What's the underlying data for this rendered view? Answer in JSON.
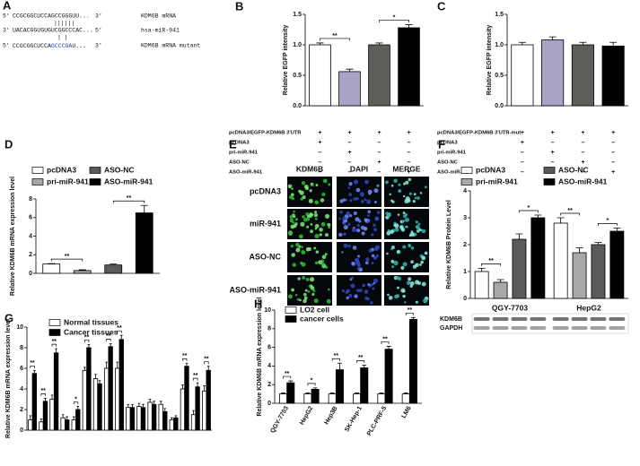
{
  "panel_a": {
    "label": "A",
    "lines": [
      {
        "start": "5'",
        "seq": "CCGCGGCUCCAGCCGGGUU...",
        "end": "3'",
        "name": "KDM6B mRNA"
      },
      {
        "start": "3'",
        "seq": "UACACGGUGUGUCGGCCCAC...",
        "end": "5'",
        "name": "hsa-miR-941"
      },
      {
        "start": "5'",
        "seq": "CCGCGGCUCCA",
        "seq_mutated": "GCCCGA",
        "seq_rest": "U...",
        "end": "3'",
        "name": "KDM6B mRNA mutant"
      }
    ],
    "pairings": [
      "||||||",
      "|  |"
    ]
  },
  "panel_e": {
    "label": "E",
    "columns": [
      "KDM6B",
      "DAPI",
      "MERGE"
    ],
    "rows": [
      "pcDNA3",
      "miR-941",
      "ASO-NC",
      "ASO-miR-941"
    ]
  },
  "chart_data": [
    {
      "type": "bar",
      "panel_label": "B",
      "y_label": "Relative EGFP intensity",
      "ylim": [
        0,
        1.5
      ],
      "yticks": [
        {
          "value": 0,
          "label": "0.0"
        },
        0.5,
        {
          "value": 1,
          "label": "1.0"
        },
        1.5
      ],
      "series": [
        {
          "color": "#ffffff",
          "values": [
            1.0
          ],
          "errors": [
            0.03
          ]
        },
        {
          "color": "#a9a3c6",
          "values": [
            0.56
          ],
          "errors": [
            0.04
          ]
        },
        {
          "color": "#5e5e58",
          "values": [
            1.0
          ],
          "errors": [
            0.03
          ]
        },
        {
          "color": "#000000",
          "values": [
            1.28
          ],
          "errors": [
            0.05
          ]
        }
      ],
      "significance": [
        "**",
        "*"
      ],
      "conditions": [
        {
          "label": "pcDNA3/EGFP-KDM6B 3'UTR",
          "cells": [
            "+",
            "+",
            "+",
            "+"
          ]
        },
        {
          "label": "pcDNA3",
          "cells": [
            "+",
            "–",
            "–",
            "–"
          ]
        },
        {
          "label": "pri-miR-941",
          "cells": [
            "–",
            "+",
            "–",
            "–"
          ]
        },
        {
          "label": "ASO-NC",
          "cells": [
            "–",
            "–",
            "+",
            "–"
          ]
        },
        {
          "label": "ASO-miR-941",
          "cells": [
            "–",
            "–",
            "–",
            "+"
          ]
        }
      ]
    },
    {
      "type": "bar",
      "panel_label": "C",
      "y_label": "Relative EGFP intensity",
      "ylim": [
        0,
        1.5
      ],
      "yticks": [
        {
          "value": 0,
          "label": "0.0"
        },
        0.5,
        {
          "value": 1,
          "label": "1.0"
        },
        1.5
      ],
      "series": [
        {
          "color": "#ffffff",
          "values": [
            1.0
          ],
          "errors": [
            0.04
          ]
        },
        {
          "color": "#a9a3c6",
          "values": [
            1.08
          ],
          "errors": [
            0.05
          ]
        },
        {
          "color": "#5e5e58",
          "values": [
            1.0
          ],
          "errors": [
            0.04
          ]
        },
        {
          "color": "#000000",
          "values": [
            0.98
          ],
          "errors": [
            0.06
          ]
        }
      ],
      "conditions": [
        {
          "label": "pcDNA3/EGFP-KDM6B 3'UTR-mut",
          "cells": [
            "+",
            "+",
            "+",
            "+"
          ]
        },
        {
          "label": "pcDNA3",
          "cells": [
            "+",
            "–",
            "–",
            "–"
          ]
        },
        {
          "label": "pri-miR-941",
          "cells": [
            "–",
            "+",
            "–",
            "–"
          ]
        },
        {
          "label": "ASO-NC",
          "cells": [
            "–",
            "–",
            "+",
            "–"
          ]
        },
        {
          "label": "ASO-miR-941",
          "cells": [
            "–",
            "–",
            "–",
            "+"
          ]
        }
      ]
    },
    {
      "type": "bar",
      "panel_label": "D",
      "y_label": "Relative KDM6B mRNA expression level",
      "ylim": [
        0,
        8
      ],
      "yticks": [
        0,
        2,
        4,
        6,
        8
      ],
      "series": [
        {
          "name": "pcDNA3",
          "color": "#ffffff",
          "values": [
            1.0
          ],
          "errors": [
            0.05
          ]
        },
        {
          "name": "pri-miR-941",
          "color": "#a8a8a8",
          "values": [
            0.3
          ],
          "errors": [
            0.08
          ]
        },
        {
          "name": "ASO-NC",
          "color": "#5a5a5a",
          "values": [
            0.9
          ],
          "errors": [
            0.1
          ]
        },
        {
          "name": "ASO-miR-941",
          "color": "#000000",
          "values": [
            6.5
          ],
          "errors": [
            0.8
          ]
        }
      ],
      "significance": [
        "**",
        "**"
      ]
    },
    {
      "type": "bar",
      "panel_label": "F",
      "y_label": "Relative KDM6B Protein Level",
      "ylim": [
        0,
        4
      ],
      "yticks": [
        0,
        1,
        2,
        3,
        4
      ],
      "categories": [
        "QGY-7703",
        "HepG2"
      ],
      "series": [
        {
          "name": "pcDNA3",
          "color": "#ffffff",
          "values": [
            1.0,
            2.8
          ],
          "errors": [
            0.12,
            0.2
          ]
        },
        {
          "name": "pri-miR-941",
          "color": "#a8a8a8",
          "values": [
            0.6,
            1.7
          ],
          "errors": [
            0.1,
            0.18
          ]
        },
        {
          "name": "ASO-NC",
          "color": "#5a5a5a",
          "values": [
            2.2,
            2.0
          ],
          "errors": [
            0.2,
            0.08
          ]
        },
        {
          "name": "ASO-miR-941",
          "color": "#000000",
          "values": [
            3.0,
            2.5
          ],
          "errors": [
            0.1,
            0.12
          ]
        }
      ],
      "significance": [
        "**",
        "*",
        "**",
        "*"
      ],
      "blot_labels": [
        "KDM6B",
        "GAPDH"
      ]
    },
    {
      "type": "bar",
      "panel_label": "G",
      "y_label": "Relative KDM6B mRNA expression level",
      "ylim": [
        0,
        10
      ],
      "yticks": [
        0,
        2,
        4,
        6,
        8,
        10
      ],
      "series": [
        {
          "name": "Normal tissues",
          "color": "#ffffff",
          "values": [
            1.0,
            0.8,
            3.0,
            1.2,
            1.0,
            5.8,
            5.0,
            6.0,
            6.0,
            2.2,
            2.3,
            2.7,
            2.5,
            1.0,
            4.0,
            1.5,
            3.8
          ],
          "errors": [
            0.4,
            0.3,
            0.4,
            0.3,
            0.3,
            0.3,
            0.4,
            0.6,
            0.6,
            0.3,
            0.3,
            0.3,
            0.3,
            0.2,
            0.4,
            0.4,
            0.5
          ]
        },
        {
          "name": "Cancer tissues",
          "color": "#000000",
          "values": [
            5.5,
            2.8,
            7.5,
            1.0,
            2.0,
            8.0,
            4.5,
            8.1,
            8.8,
            2.2,
            2.2,
            2.5,
            1.8,
            1.2,
            6.2,
            4.2,
            5.8
          ],
          "errors": [
            0.3,
            0.3,
            0.4,
            0.3,
            0.3,
            0.3,
            0.3,
            0.3,
            0.4,
            0.3,
            0.3,
            0.3,
            0.3,
            0.2,
            0.3,
            0.4,
            0.4
          ]
        }
      ],
      "significance": [
        "**",
        "**",
        "**",
        null,
        "*",
        "**",
        null,
        "**",
        "**",
        null,
        null,
        null,
        null,
        null,
        "**",
        "**",
        "**"
      ]
    },
    {
      "type": "bar",
      "panel_label": "H",
      "y_label": "Relative KDM6B mRNA expression level",
      "ylim": [
        0,
        10
      ],
      "yticks": [
        0,
        2,
        4,
        6,
        8,
        10
      ],
      "categories": [
        "QGY-7703",
        "HepG2",
        "Hep3B",
        "SK-Hep-1",
        "PLC-PRF-5",
        "LM6"
      ],
      "series": [
        {
          "name": "LO2 cell",
          "color": "#ffffff",
          "values": [
            1.0,
            1.0,
            1.0,
            1.0,
            1.0,
            1.0
          ],
          "errors": [
            0.1,
            0.1,
            0.1,
            0.1,
            0.1,
            0.1
          ]
        },
        {
          "name": "cancer cells",
          "color": "#000000",
          "values": [
            2.2,
            1.5,
            3.6,
            3.8,
            5.8,
            9.0
          ],
          "errors": [
            0.2,
            0.15,
            0.7,
            0.3,
            0.3,
            0.2
          ]
        }
      ],
      "significance": [
        "**",
        "*",
        "**",
        "**",
        "**",
        "**"
      ]
    }
  ]
}
